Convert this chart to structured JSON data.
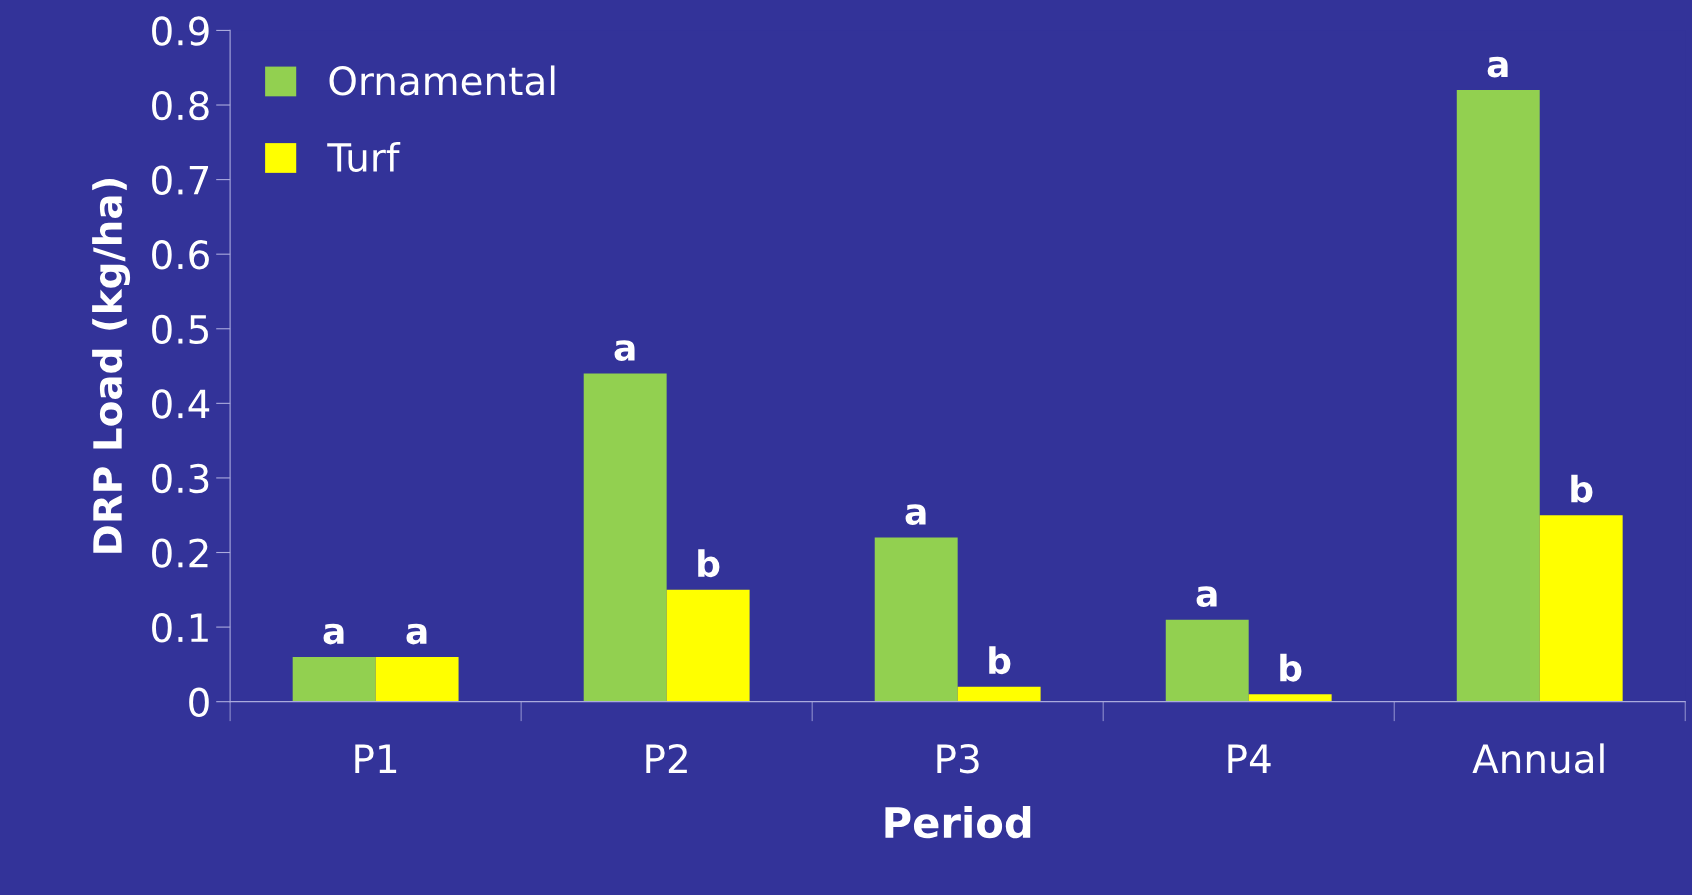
{
  "chart_data": {
    "type": "bar",
    "xlabel": "Period",
    "ylabel": "DRP Load (kg/ha)",
    "categories": [
      "P1",
      "P2",
      "P3",
      "P4",
      "Annual"
    ],
    "series": [
      {
        "name": "Ornamental",
        "color": "#92d050",
        "values": [
          0.06,
          0.44,
          0.22,
          0.11,
          0.82
        ],
        "value_labels": [
          "a",
          "a",
          "a",
          "a",
          "a"
        ]
      },
      {
        "name": "Turf",
        "color": "#ffff00",
        "values": [
          0.06,
          0.15,
          0.02,
          0.01,
          0.25
        ],
        "value_labels": [
          "a",
          "b",
          "b",
          "b",
          "b"
        ]
      }
    ],
    "ylim": [
      0,
      0.9
    ],
    "yticks": [
      0,
      0.1,
      0.2,
      0.3,
      0.4,
      0.5,
      0.6,
      0.7,
      0.8,
      0.9
    ],
    "grid": false,
    "legend": "top left"
  }
}
